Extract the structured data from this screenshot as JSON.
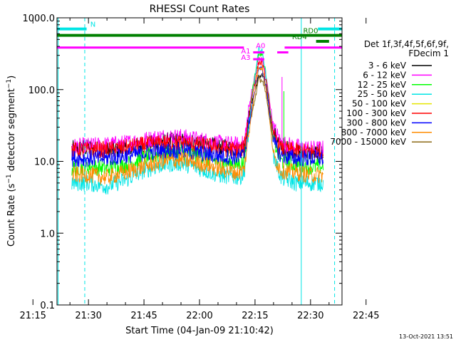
{
  "chart_data": {
    "type": "line",
    "title": "RHESSI Count Rates",
    "xlabel": "Start Time (04-Jan-09 21:10:42)",
    "ylabel_main": "Count Rate (s",
    "ylabel_sup": "−1",
    "ylabel_tail": " detector segment",
    "ylabel_sup2": "−1",
    "ylabel_close": ")",
    "yscale": "log",
    "ylim": [
      0.1,
      1000
    ],
    "xlim_minutes": [
      21.5,
      98.5
    ],
    "x_ticks": [
      {
        "label": "21:15",
        "minutes": 15
      },
      {
        "label": "21:30",
        "minutes": 30
      },
      {
        "label": "21:45",
        "minutes": 45
      },
      {
        "label": "22:00",
        "minutes": 60
      },
      {
        "label": "22:15",
        "minutes": 75
      },
      {
        "label": "22:30",
        "minutes": 90
      },
      {
        "label": "22:45",
        "minutes": 105
      }
    ],
    "y_ticks": [
      {
        "label": "1000.0",
        "value": 1000
      },
      {
        "label": "100.0",
        "value": 100
      },
      {
        "label": "10.0",
        "value": 10
      },
      {
        "label": "1.0",
        "value": 1
      },
      {
        "label": "0.1",
        "value": 0.1
      }
    ],
    "legend": {
      "header1": "Det 1f,3f,4f,5f,6f,9f,",
      "header2": "FDecim 1",
      "entries": [
        {
          "label": "3 - 6 keV",
          "color": "#000000"
        },
        {
          "label": "6 - 12 keV",
          "color": "#ff00ff"
        },
        {
          "label": "12 - 25 keV",
          "color": "#00ff00"
        },
        {
          "label": "25 - 50 keV",
          "color": "#00e5e5"
        },
        {
          "label": "50 - 100 keV",
          "color": "#e5e500"
        },
        {
          "label": "100 - 300 keV",
          "color": "#ff0000"
        },
        {
          "label": "300 - 800 keV",
          "color": "#0000ff"
        },
        {
          "label": "800 - 7000 keV",
          "color": "#ff8c00"
        },
        {
          "label": "7000 - 15000 keV",
          "color": "#8b6914"
        }
      ]
    },
    "series": [
      {
        "name": "3 - 6 keV",
        "color": "#000000",
        "start": 25.5,
        "end": 93.5,
        "points": [
          [
            25.5,
            15
          ],
          [
            30,
            15.5
          ],
          [
            35,
            14
          ],
          [
            40,
            15
          ],
          [
            45,
            17
          ],
          [
            50,
            19
          ],
          [
            55,
            19.5
          ],
          [
            60,
            18
          ],
          [
            65,
            16
          ],
          [
            70,
            15
          ],
          [
            72,
            15.5
          ],
          [
            74,
            60
          ],
          [
            76,
            150
          ],
          [
            77,
            160
          ],
          [
            78,
            100
          ],
          [
            80,
            25
          ],
          [
            82,
            16
          ],
          [
            86,
            14
          ],
          [
            90,
            13
          ],
          [
            93.5,
            13
          ]
        ]
      },
      {
        "name": "6 - 12 keV",
        "color": "#ff00ff",
        "start": 25.5,
        "end": 93.5,
        "points": [
          [
            25.5,
            16
          ],
          [
            30,
            16.5
          ],
          [
            35,
            17
          ],
          [
            40,
            18
          ],
          [
            45,
            20
          ],
          [
            50,
            22
          ],
          [
            55,
            22
          ],
          [
            60,
            20
          ],
          [
            65,
            18
          ],
          [
            70,
            17
          ],
          [
            72,
            17.5
          ],
          [
            74,
            90
          ],
          [
            76,
            270
          ],
          [
            77,
            260
          ],
          [
            78,
            150
          ],
          [
            80,
            30
          ],
          [
            82,
            18
          ],
          [
            86,
            16
          ],
          [
            90,
            15
          ],
          [
            93.5,
            15
          ]
        ]
      },
      {
        "name": "12 - 25 keV",
        "color": "#00ff00",
        "start": 25.5,
        "end": 93.5,
        "points": [
          [
            25.5,
            8
          ],
          [
            30,
            8.5
          ],
          [
            35,
            8
          ],
          [
            40,
            9
          ],
          [
            45,
            11
          ],
          [
            50,
            13
          ],
          [
            55,
            13.5
          ],
          [
            60,
            12
          ],
          [
            65,
            10
          ],
          [
            70,
            9
          ],
          [
            72,
            9.5
          ],
          [
            74,
            80
          ],
          [
            76,
            320
          ],
          [
            77,
            310
          ],
          [
            78,
            160
          ],
          [
            80,
            20
          ],
          [
            82,
            10
          ],
          [
            86,
            9
          ],
          [
            90,
            8.5
          ],
          [
            93.5,
            8.5
          ]
        ]
      },
      {
        "name": "25 - 50 keV",
        "color": "#00e5e5",
        "start": 25.5,
        "end": 93.5,
        "points": [
          [
            25.5,
            5
          ],
          [
            30,
            5
          ],
          [
            35,
            4.5
          ],
          [
            40,
            5.5
          ],
          [
            45,
            7.5
          ],
          [
            50,
            9
          ],
          [
            55,
            9.5
          ],
          [
            60,
            8
          ],
          [
            65,
            6.5
          ],
          [
            70,
            6
          ],
          [
            72,
            6.5
          ],
          [
            74,
            60
          ],
          [
            76,
            360
          ],
          [
            77,
            340
          ],
          [
            78,
            150
          ],
          [
            80,
            12
          ],
          [
            82,
            6
          ],
          [
            86,
            5
          ],
          [
            90,
            5
          ],
          [
            93.5,
            5
          ]
        ]
      },
      {
        "name": "100 - 300 keV",
        "color": "#ff0000",
        "start": 25.5,
        "end": 93.5,
        "points": [
          [
            25.5,
            14
          ],
          [
            30,
            14.5
          ],
          [
            35,
            14.5
          ],
          [
            40,
            15.5
          ],
          [
            45,
            17
          ],
          [
            50,
            18
          ],
          [
            55,
            18
          ],
          [
            60,
            17
          ],
          [
            65,
            15.5
          ],
          [
            70,
            14.5
          ],
          [
            72,
            15
          ],
          [
            74,
            70
          ],
          [
            76,
            240
          ],
          [
            77,
            230
          ],
          [
            78,
            130
          ],
          [
            80,
            22
          ],
          [
            82,
            15
          ],
          [
            86,
            14
          ],
          [
            90,
            13.5
          ],
          [
            93.5,
            13.5
          ]
        ]
      },
      {
        "name": "300 - 800 keV",
        "color": "#0000ff",
        "start": 25.5,
        "end": 93.5,
        "points": [
          [
            25.5,
            11
          ],
          [
            30,
            11
          ],
          [
            35,
            11
          ],
          [
            40,
            12
          ],
          [
            45,
            13
          ],
          [
            50,
            14
          ],
          [
            55,
            14
          ],
          [
            60,
            13
          ],
          [
            65,
            12
          ],
          [
            70,
            11.5
          ],
          [
            72,
            12
          ],
          [
            74,
            50
          ],
          [
            76,
            200
          ],
          [
            77,
            190
          ],
          [
            78,
            110
          ],
          [
            80,
            18
          ],
          [
            82,
            12
          ],
          [
            86,
            11
          ],
          [
            90,
            11
          ],
          [
            93.5,
            11
          ]
        ]
      },
      {
        "name": "800 - 7000 keV",
        "color": "#ff8c00",
        "start": 25.5,
        "end": 93.5,
        "points": [
          [
            25.5,
            6.5
          ],
          [
            30,
            6.5
          ],
          [
            35,
            6
          ],
          [
            40,
            7
          ],
          [
            45,
            8.5
          ],
          [
            50,
            10
          ],
          [
            55,
            10.5
          ],
          [
            60,
            9.5
          ],
          [
            65,
            8
          ],
          [
            70,
            7
          ],
          [
            72,
            7.5
          ],
          [
            74,
            45
          ],
          [
            76,
            210
          ],
          [
            77,
            200
          ],
          [
            78,
            100
          ],
          [
            80,
            12
          ],
          [
            82,
            7.5
          ],
          [
            86,
            7
          ],
          [
            90,
            6.5
          ],
          [
            93.5,
            6.5
          ]
        ]
      },
      {
        "name": "7000 - 15000 keV",
        "color": "#8b6914",
        "start": 74,
        "end": 80,
        "points": [
          [
            74,
            40
          ],
          [
            76,
            140
          ],
          [
            77,
            135
          ],
          [
            78,
            80
          ],
          [
            80,
            20
          ]
        ]
      }
    ],
    "attenuator_labels": [
      {
        "label": "A0",
        "minutes": 76.5,
        "value": 380,
        "color": "#ff00ff"
      },
      {
        "label": "A1",
        "minutes": 72.5,
        "value": 320,
        "color": "#ff00ff"
      },
      {
        "label": "A3",
        "minutes": 72.5,
        "value": 260,
        "color": "#ff00ff"
      }
    ],
    "attenuator_bars": [
      {
        "from": 21.5,
        "to": 72,
        "value": 385,
        "color": "#ff00ff"
      },
      {
        "from": 83,
        "to": 98.5,
        "value": 385,
        "color": "#ff00ff"
      },
      {
        "from": 74.5,
        "to": 77.5,
        "value": 330,
        "color": "#ff00ff"
      },
      {
        "from": 74.5,
        "to": 77.5,
        "value": 265,
        "color": "#ff00ff"
      },
      {
        "from": 81,
        "to": 84,
        "value": 330,
        "color": "#ff00ff"
      }
    ],
    "flag_bars": [
      {
        "label": "N",
        "from": 21.5,
        "to": 29.5,
        "value": 700,
        "color": "#00e5e5",
        "label_at": 30.5
      },
      {
        "label": "",
        "from": 92,
        "to": 98.5,
        "value": 700,
        "color": "#00e5e5"
      },
      {
        "label": "RD0",
        "from": 21.5,
        "to": 98.5,
        "value": 570,
        "color": "#008000",
        "label_at": 88
      },
      {
        "label": "RD4",
        "from": 91.5,
        "to": 95,
        "value": 470,
        "color": "#008000",
        "label_at": 85
      }
    ],
    "vlines_dashed": [
      {
        "minutes": 29,
        "color": "#00e5e5"
      },
      {
        "minutes": 96.5,
        "color": "#00e5e5"
      }
    ],
    "vlines_solid": [
      {
        "minutes": 21.8,
        "color": "#00e5e5"
      },
      {
        "minutes": 87.5,
        "color": "#00e5e5"
      }
    ],
    "timestamp": "13-Oct-2021 13:51"
  }
}
